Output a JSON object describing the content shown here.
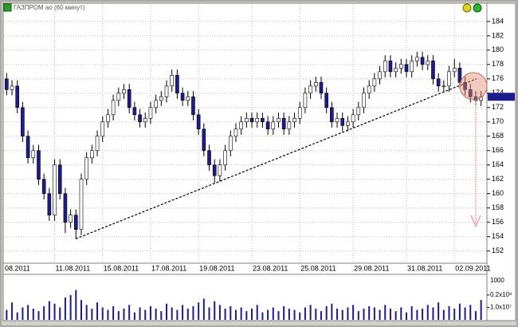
{
  "chart_data": [
    {
      "type": "candlestick",
      "title": "ГАЗПРОМ ао (60 минут)",
      "categories": [
        "08.2011",
        null,
        null,
        null,
        null,
        null,
        null,
        null,
        null,
        "11.08.2011",
        null,
        null,
        null,
        null,
        null,
        null,
        null,
        null,
        "15.08.2011",
        null,
        null,
        null,
        null,
        null,
        null,
        null,
        null,
        "17.08.2011",
        null,
        null,
        null,
        null,
        null,
        null,
        null,
        null,
        "19.08.2011",
        null,
        null,
        null,
        null,
        null,
        null,
        null,
        null,
        null,
        "23.08.2011",
        null,
        null,
        null,
        null,
        null,
        null,
        null,
        null,
        "25.08.2011",
        null,
        null,
        null,
        null,
        null,
        null,
        null,
        null,
        null,
        "29.08.2011",
        null,
        null,
        null,
        null,
        null,
        null,
        null,
        null,
        null,
        "31.08.2011",
        null,
        null,
        null,
        null,
        null,
        null,
        null,
        null,
        "02.09.2011",
        null,
        null,
        null,
        null,
        null
      ],
      "open": [
        176,
        174.5,
        175,
        172,
        168,
        165,
        166,
        162,
        160,
        157,
        164,
        160,
        156,
        157,
        155,
        162,
        165,
        166,
        168,
        170,
        171,
        173,
        174,
        174.5,
        172,
        171,
        170,
        170.5,
        172,
        173,
        173.5,
        175,
        176.5,
        174,
        173,
        173.5,
        171,
        169,
        166,
        164,
        162.5,
        164,
        166,
        168,
        169,
        170,
        170.5,
        170,
        170.5,
        170,
        169,
        170,
        170.5,
        169,
        170,
        170.5,
        172,
        174,
        175,
        175.5,
        174,
        172,
        170,
        170.5,
        169.5,
        170,
        171,
        172,
        174,
        175,
        176,
        177,
        178.5,
        177,
        177.5,
        178,
        177,
        178.5,
        179,
        178,
        178.5,
        176,
        175,
        175,
        177,
        177.5,
        175.5,
        174.5,
        173.5,
        173
      ],
      "high": [
        176.8,
        175.8,
        175.8,
        172.8,
        168.8,
        166.8,
        166.8,
        162.8,
        160.8,
        164.8,
        164.8,
        160.8,
        157.8,
        157.8,
        162.8,
        165.8,
        166.8,
        168.8,
        170.8,
        171.8,
        173.8,
        174.8,
        175.3,
        175.3,
        172.8,
        171.8,
        171.3,
        172.8,
        173.8,
        174.3,
        175.8,
        177.3,
        177.3,
        174.8,
        174.3,
        174.3,
        171.8,
        169.8,
        166.8,
        164.8,
        164.8,
        166.8,
        168.8,
        169.8,
        170.8,
        171.3,
        171.3,
        171.3,
        171.3,
        170.8,
        170.8,
        171.3,
        171.3,
        170.8,
        171.3,
        172.8,
        174.8,
        175.8,
        176.3,
        176.3,
        174.8,
        172.8,
        171.3,
        171.3,
        170.8,
        171.8,
        172.8,
        174.8,
        175.8,
        176.8,
        177.8,
        179.3,
        179.3,
        178.3,
        178.8,
        178.8,
        179.3,
        179.8,
        179.8,
        179.3,
        179.3,
        176.8,
        175.8,
        177.8,
        178.8,
        178.3,
        176.3,
        175.3,
        174.3,
        174.3
      ],
      "low": [
        173.7,
        173.7,
        171.2,
        167.2,
        164.2,
        164.2,
        161.2,
        159.2,
        156.2,
        156.2,
        159.2,
        154.5,
        155.2,
        153.7,
        154.2,
        161.2,
        164.2,
        165.2,
        167.2,
        169.2,
        170.2,
        172.2,
        173.2,
        171.2,
        170.2,
        169.2,
        169.2,
        169.7,
        171.2,
        172.2,
        172.7,
        174.2,
        173.2,
        172.2,
        172.2,
        170.2,
        168.2,
        165.2,
        163.2,
        161.5,
        161.7,
        163.2,
        165.2,
        167.2,
        168.2,
        169.2,
        169.2,
        169.2,
        169.2,
        168.2,
        168.2,
        169.2,
        168.2,
        168.2,
        169.2,
        169.7,
        171.2,
        173.2,
        174.2,
        173.2,
        171.2,
        169.2,
        169.2,
        168.7,
        168.7,
        169.2,
        170.2,
        171.2,
        173.2,
        174.2,
        175.2,
        176.2,
        176.2,
        176.2,
        176.7,
        176.2,
        176.2,
        177.7,
        177.2,
        177.2,
        175.2,
        174.2,
        174.2,
        174.2,
        176.2,
        174.7,
        173.7,
        172.7,
        172.2,
        172.2
      ],
      "close": [
        174.5,
        175,
        172,
        168,
        165,
        166,
        162,
        160,
        157,
        164,
        160,
        156,
        157,
        155,
        162,
        165,
        166,
        168,
        170,
        171,
        173,
        174,
        174.5,
        172,
        171,
        170,
        170.5,
        172,
        173,
        173.5,
        175,
        176.5,
        174,
        173,
        173.5,
        171,
        169,
        166,
        164,
        162.5,
        164,
        166,
        168,
        169,
        170,
        170.5,
        170,
        170.5,
        170,
        169,
        170,
        170.5,
        169,
        170,
        170.5,
        172,
        174,
        175,
        175.5,
        174,
        172,
        170,
        170.5,
        169.5,
        170,
        171,
        172,
        174,
        175,
        176,
        177,
        178.5,
        177,
        177.5,
        178,
        177,
        178.5,
        179,
        178,
        178.5,
        176,
        175,
        175,
        177,
        177.5,
        175.5,
        174.5,
        173.5,
        173,
        173.5
      ],
      "up_color": "#ffffff",
      "down_color": "#1c1c8c",
      "grid": true,
      "ylim": [
        150.3,
        186.1
      ],
      "yticks": [
        152,
        154,
        156,
        158,
        160,
        162,
        164,
        166,
        168,
        170,
        172,
        174,
        176,
        178,
        180,
        182,
        184
      ]
    },
    {
      "type": "bar",
      "color": "#1c1c8c",
      "scale_label": "1000",
      "values": [
        8000000.0,
        14000000.0,
        6000000.0,
        10000000.0,
        12000000.0,
        9000000.0,
        7000000.0,
        11000000.0,
        15000000.0,
        13000000.0,
        10000000.0,
        18000000.0,
        20000000.0,
        24000000.0,
        16000000.0,
        12000000.0,
        9000000.0,
        14000000.0,
        10000000.0,
        8000000.0,
        11000000.0,
        7000000.0,
        9000000.0,
        12000000.0,
        6000000.0,
        10000000.0,
        8000000.0,
        11000000.0,
        9000000.0,
        7000000.0,
        13000000.0,
        10000000.0,
        8000000.0,
        12000000.0,
        9000000.0,
        11000000.0,
        14000000.0,
        17000000.0,
        10000000.0,
        15000000.0,
        12000000.0,
        9000000.0,
        11000000.0,
        8000000.0,
        10000000.0,
        7000000.0,
        9000000.0,
        12000000.0,
        6000000.0,
        8000000.0,
        10000000.0,
        7000000.0,
        11000000.0,
        9000000.0,
        8000000.0,
        6000000.0,
        10000000.0,
        12000000.0,
        9000000.0,
        7000000.0,
        11000000.0,
        13000000.0,
        9000000.0,
        8000000.0,
        10000000.0,
        12000000.0,
        7000000.0,
        9000000.0,
        11000000.0,
        10000000.0,
        8000000.0,
        12000000.0,
        9000000.0,
        7000000.0,
        10000000.0,
        6000000.0,
        11000000.0,
        8000000.0,
        9000000.0,
        12000000.0,
        10000000.0,
        14000000.0,
        8000000.0,
        11000000.0,
        9000000.0,
        13000000.0,
        10000000.0,
        12000000.0,
        7000000.0,
        16000000.0
      ],
      "ylim": [
        0,
        36000000
      ],
      "yticks": [
        {
          "value": 10000000,
          "label": "1.0x10⁷"
        },
        {
          "value": 20000000,
          "label": "0.2x10⁸"
        }
      ]
    }
  ]
}
